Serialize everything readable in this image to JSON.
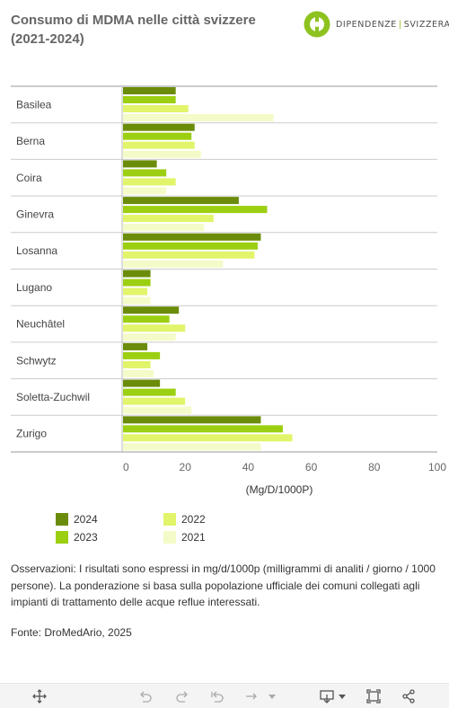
{
  "header": {
    "title": "Consumo di MDMA nelle città svizzere (2021-2024)",
    "logo": {
      "left": "DIPENDENZE",
      "separator": "|",
      "right": "SVIZZERA",
      "icon": "dipendenze-svizzera-logo-icon"
    }
  },
  "chart_data": {
    "type": "bar",
    "orientation": "horizontal",
    "categories": [
      "Basilea",
      "Berna",
      "Coira",
      "Ginevra",
      "Losanna",
      "Lugano",
      "Neuchâtel",
      "Schwytz",
      "Soletta-Zuchwil",
      "Zurigo"
    ],
    "series": [
      {
        "name": "2024",
        "color": "#6b8c0a",
        "values": [
          17,
          23,
          11,
          37,
          44,
          9,
          18,
          8,
          12,
          44
        ]
      },
      {
        "name": "2023",
        "color": "#9ccf12",
        "values": [
          17,
          22,
          14,
          46,
          43,
          9,
          15,
          12,
          17,
          51
        ]
      },
      {
        "name": "2022",
        "color": "#e2f46a",
        "values": [
          21,
          23,
          17,
          29,
          42,
          8,
          20,
          9,
          20,
          54
        ]
      },
      {
        "name": "2021",
        "color": "#f5fbc8",
        "values": [
          48,
          25,
          14,
          26,
          32,
          9,
          17,
          10,
          22,
          44
        ]
      }
    ],
    "xlabel": "(Mg/D/1000P)",
    "ylabel": "",
    "xlim": [
      0,
      100
    ],
    "xticks": [
      0,
      20,
      40,
      60,
      80,
      100
    ],
    "grid": true,
    "legend_position": "bottom-left"
  },
  "notes": "Osservazioni: I risultati sono espressi in mg/d/1000p (milligrammi di analiti / giorno / 1000 persone). La ponderazione si basa sulla popolazione ufficiale dei comuni collegati agli impianti di trattamento delle acque reflue interessati.",
  "source": "Fonte: DroMedArio, 2025",
  "toolbar": {
    "icons": [
      "move-icon",
      "undo-icon",
      "redo-icon",
      "reset-icon",
      "forward-icon",
      "dropdown-icon",
      "download-icon",
      "fullscreen-icon",
      "share-icon"
    ]
  }
}
